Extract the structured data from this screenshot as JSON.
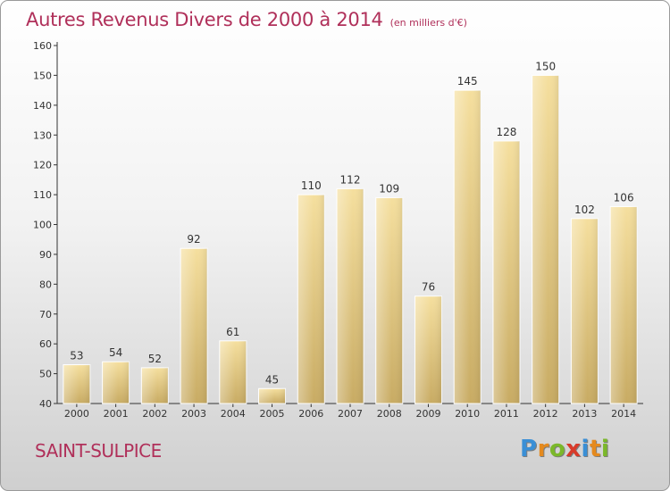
{
  "title": "Autres Revenus Divers de 2000 à 2014",
  "title_unit": "(en milliers d'€)",
  "location": "SAINT-SULPICE",
  "logo": {
    "letters": [
      "P",
      "r",
      "o",
      "x",
      "i",
      "t",
      "i"
    ],
    "colors": [
      "#3a8fd6",
      "#e58a1e",
      "#7bb82a",
      "#d83b2a",
      "#3a8fd6",
      "#e58a1e",
      "#7bb82a"
    ]
  },
  "chart_data": {
    "type": "bar",
    "title": "Autres Revenus Divers de 2000 à 2014",
    "xlabel": "",
    "ylabel": "",
    "categories": [
      "2000",
      "2001",
      "2002",
      "2003",
      "2004",
      "2005",
      "2006",
      "2007",
      "2008",
      "2009",
      "2010",
      "2011",
      "2012",
      "2013",
      "2014"
    ],
    "values": [
      53,
      54,
      52,
      92,
      61,
      45,
      110,
      112,
      109,
      76,
      145,
      128,
      150,
      102,
      106
    ],
    "ylim": [
      40,
      160
    ],
    "yticks": [
      40,
      50,
      60,
      70,
      80,
      90,
      100,
      110,
      120,
      130,
      140,
      150,
      160
    ],
    "grid": false,
    "legend": "none",
    "bar_color": "#e9cd85"
  }
}
